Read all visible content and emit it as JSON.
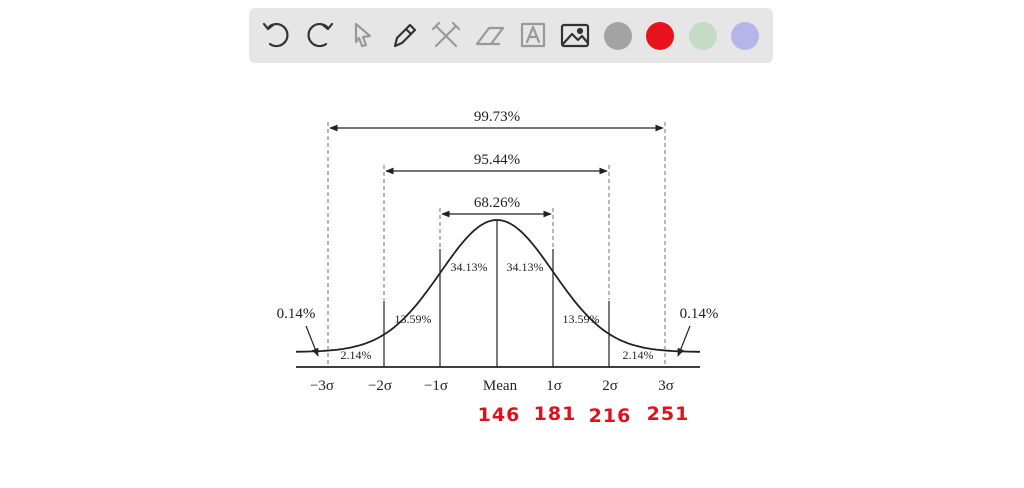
{
  "diagram": {
    "spans": [
      "99.73%",
      "95.44%",
      "68.26%"
    ],
    "regions": [
      "2.14%",
      "13.59%",
      "34.13%",
      "34.13%",
      "13.59%",
      "2.14%"
    ],
    "tails": [
      "0.14%",
      "0.14%"
    ],
    "axis_labels": [
      "−3σ",
      "−2σ",
      "−1σ",
      "Mean",
      "1σ",
      "2σ",
      "3σ"
    ]
  },
  "annotations": {
    "handwritten": [
      "146",
      "181",
      "216",
      "251"
    ]
  }
}
